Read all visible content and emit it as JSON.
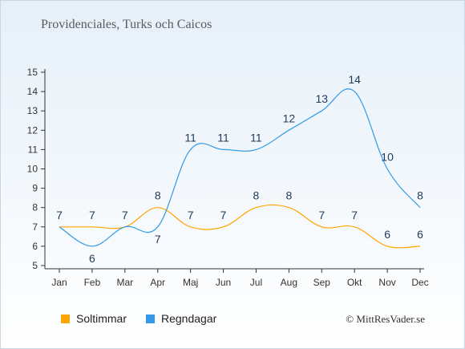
{
  "chart_data": {
    "type": "line",
    "title": "Providenciales, Turks och Caicos",
    "categories": [
      "Jan",
      "Feb",
      "Mar",
      "Apr",
      "Maj",
      "Jun",
      "Jul",
      "Aug",
      "Sep",
      "Okt",
      "Nov",
      "Dec"
    ],
    "ylim": [
      5,
      15
    ],
    "yticks": [
      "5",
      "6",
      "7",
      "8",
      "9",
      "10",
      "11",
      "12",
      "13",
      "14",
      "15"
    ],
    "series": [
      {
        "name": "Soltimmar",
        "color": "#ffa500",
        "values": [
          7,
          7,
          7,
          8,
          7,
          7,
          8,
          8,
          7,
          7,
          6,
          6
        ]
      },
      {
        "name": "Regndagar",
        "color": "#3399e6",
        "values": [
          7,
          6,
          7,
          7,
          11,
          11,
          11,
          12,
          13,
          14,
          10,
          8
        ]
      }
    ],
    "legend_position": "bottom-left",
    "grid": false
  },
  "copyright": "© MittResVader.se"
}
